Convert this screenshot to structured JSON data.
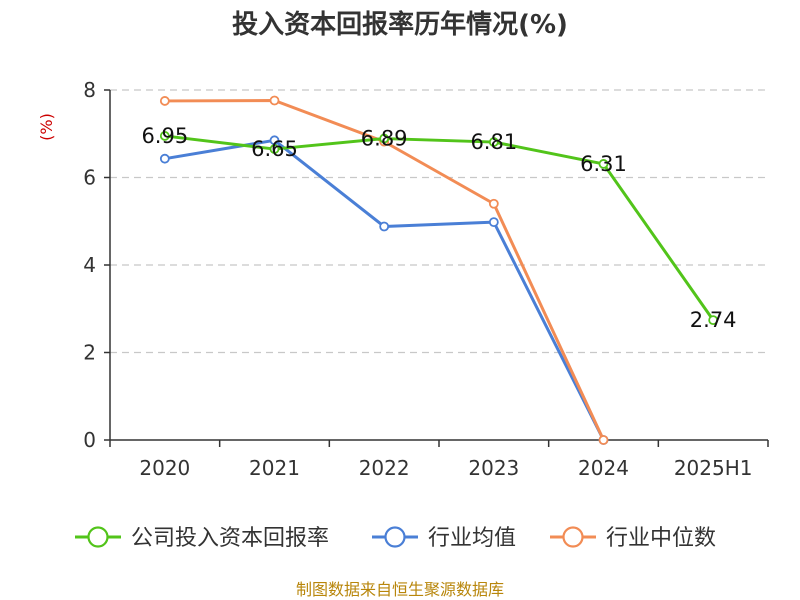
{
  "chart_data": {
    "type": "line",
    "title": "投入资本回报率历年情况(%)",
    "ylabel": "(%)",
    "xlabel": "",
    "categories": [
      "2020",
      "2021",
      "2022",
      "2023",
      "2024",
      "2025H1"
    ],
    "ylim": [
      0,
      8
    ],
    "yticks": [
      0,
      2,
      4,
      6,
      8
    ],
    "grid": true,
    "legend_position": "bottom",
    "series": [
      {
        "name": "公司投入资本回报率",
        "color": "#52c41a",
        "values": [
          6.95,
          6.65,
          6.89,
          6.81,
          6.31,
          2.74
        ],
        "labels": [
          "6.95",
          "6.65",
          "6.89",
          "6.81",
          "6.31",
          "2.74"
        ]
      },
      {
        "name": "行业均值",
        "color": "#4a7fd6",
        "values": [
          6.43,
          6.85,
          4.88,
          4.98,
          0.0,
          null
        ]
      },
      {
        "name": "行业中位数",
        "color": "#f28c55",
        "values": [
          7.75,
          7.76,
          6.82,
          5.4,
          0.0,
          null
        ]
      }
    ]
  },
  "source": "制图数据来自恒生聚源数据库"
}
